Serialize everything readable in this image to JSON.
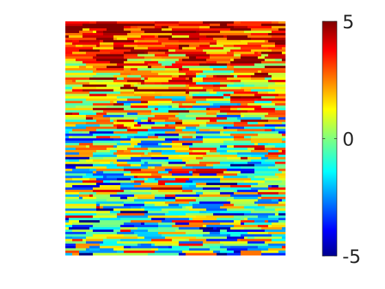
{
  "chart_data": {
    "type": "heatmap",
    "title": "",
    "xlabel": "",
    "ylabel": "",
    "colormap": "jet",
    "colorbar": {
      "range": [
        -5,
        5
      ],
      "ticks": [
        {
          "value": 5,
          "label": "5"
        },
        {
          "value": 0,
          "label": "0"
        },
        {
          "value": -5,
          "label": "-5"
        }
      ]
    },
    "rows": 100,
    "cols": 64,
    "row_trend": {
      "description_free": true,
      "top_mean": 4.0,
      "middle_mean": 0.3,
      "bottom_mean": -1.0,
      "spread": 3.2
    },
    "axes_visible": false,
    "grid": false
  }
}
